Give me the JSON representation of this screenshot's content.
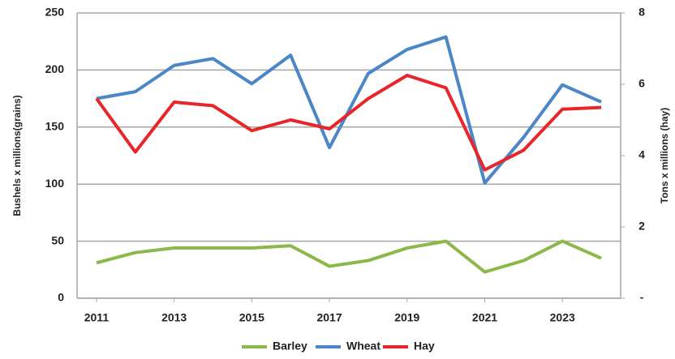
{
  "chart_data": {
    "type": "line",
    "y_label": "Bushels x millions(grains)",
    "y2_label": "Tons x millions (hay)",
    "x": [
      2011,
      2012,
      2013,
      2014,
      2015,
      2016,
      2017,
      2018,
      2019,
      2020,
      2021,
      2022,
      2023,
      2024
    ],
    "xlim": [
      2010.5,
      2024.5
    ],
    "xticks": [
      2011,
      2013,
      2015,
      2017,
      2019,
      2021,
      2023
    ],
    "ylim": [
      0,
      250
    ],
    "yticks": [
      0,
      50,
      100,
      150,
      200,
      250
    ],
    "y2lim": [
      0,
      8
    ],
    "y2ticks": [
      {
        "value": 0,
        "label": "-"
      },
      2,
      4,
      6,
      8
    ],
    "grid": true,
    "legend": "bottom",
    "series": [
      {
        "name": "Barley",
        "color": "#8cb84a",
        "values": [
          31,
          40,
          44,
          44,
          44,
          46,
          28,
          33,
          44,
          50,
          23,
          33,
          50,
          35
        ]
      },
      {
        "name": "Wheat",
        "color": "#4a86c8",
        "values": [
          175,
          181,
          204,
          210,
          188,
          213,
          132,
          197,
          218,
          229,
          101,
          141,
          187,
          172
        ]
      },
      {
        "name": "Hay",
        "color": "#e8262a",
        "axis": "y2",
        "values": [
          5.6,
          4.1,
          5.5,
          5.4,
          4.7,
          5.0,
          4.75,
          5.6,
          6.25,
          5.9,
          3.6,
          4.15,
          5.3,
          5.35
        ]
      }
    ]
  }
}
